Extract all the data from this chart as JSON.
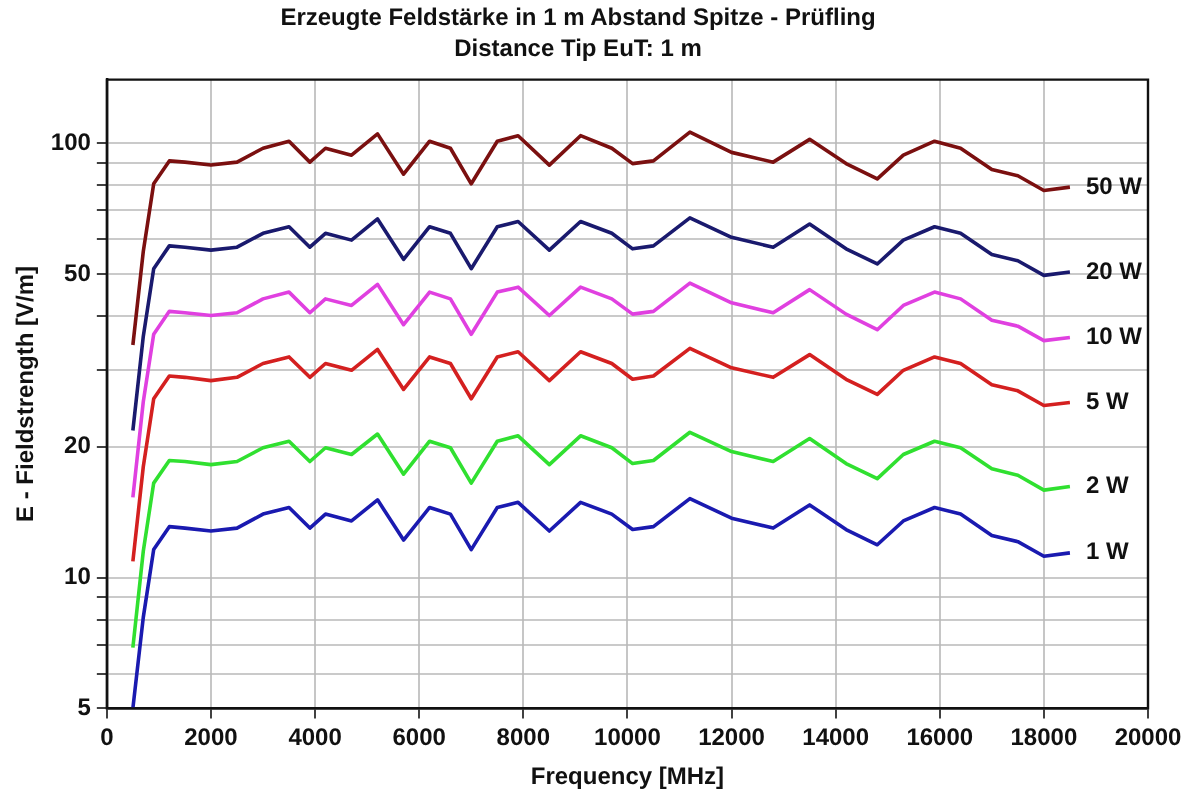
{
  "chart_data": {
    "type": "line",
    "title": "Erzeugte Feldstärke in 1 m Abstand Spitze - Prüfling",
    "subtitle": "Distance Tip EuT: 1 m",
    "xlabel": "Frequency [MHz]",
    "ylabel": "E - Fieldstrength [V/m]",
    "x": [
      500,
      700,
      900,
      1200,
      1500,
      2000,
      2500,
      3000,
      3500,
      3900,
      4200,
      4700,
      5200,
      5700,
      6200,
      6600,
      7000,
      7500,
      7900,
      8500,
      9100,
      9700,
      10100,
      10500,
      11200,
      12000,
      12800,
      13500,
      14200,
      14800,
      15300,
      15900,
      16400,
      17000,
      17500,
      18000,
      18500
    ],
    "xlim": [
      0,
      20000
    ],
    "xticks": [
      0,
      2000,
      4000,
      6000,
      8000,
      10000,
      12000,
      14000,
      16000,
      18000,
      20000
    ],
    "ylim": [
      5,
      140
    ],
    "yticks": [
      5,
      {
        "value": 6,
        "label": null
      },
      {
        "value": 7,
        "label": null
      },
      {
        "value": 8,
        "label": null
      },
      {
        "value": 9,
        "label": null
      },
      10,
      20,
      {
        "value": 30,
        "label": null
      },
      {
        "value": 40,
        "label": null
      },
      50,
      {
        "value": 60,
        "label": null
      },
      {
        "value": 70,
        "label": null
      },
      {
        "value": 80,
        "label": null
      },
      {
        "value": 90,
        "label": null
      },
      100
    ],
    "log": "y",
    "grid": true,
    "legend": false,
    "marker": "none",
    "line_style": "solid",
    "series": [
      {
        "name": "50 W",
        "color": "#7b1010",
        "values": [
          34.3,
          56.3,
          80.6,
          91,
          90.4,
          89,
          90.4,
          97.3,
          101,
          90.4,
          97.3,
          93.8,
          105,
          84.8,
          101,
          97.3,
          80.6,
          101,
          104,
          89,
          104,
          97.3,
          89.7,
          91,
          106,
          95.2,
          90.4,
          102,
          89.7,
          82.7,
          93.8,
          101,
          97.3,
          86.9,
          84.1,
          77.8,
          79.2
        ]
      },
      {
        "name": "20 W",
        "color": "#1a1a6e",
        "values": [
          21.8,
          35.9,
          51.4,
          58,
          57.6,
          56.7,
          57.6,
          62,
          64.2,
          57.6,
          62,
          59.8,
          66.9,
          54,
          64.2,
          62,
          51.4,
          64.2,
          66,
          56.7,
          66,
          62,
          57.1,
          58,
          67.3,
          60.7,
          57.6,
          65.1,
          57.1,
          52.7,
          59.8,
          64.2,
          62,
          55.4,
          53.6,
          49.6,
          50.5
        ]
      },
      {
        "name": "10 W",
        "color": "#e040e0",
        "values": [
          15.3,
          25.4,
          36.3,
          41,
          40.7,
          40.1,
          40.7,
          43.8,
          45.4,
          40.7,
          43.8,
          42.3,
          47.3,
          38.2,
          45.4,
          43.8,
          36.3,
          45.4,
          46.6,
          40.1,
          46.6,
          43.8,
          40.4,
          41,
          47.6,
          42.9,
          40.7,
          46,
          40.4,
          37.2,
          42.3,
          45.4,
          43.8,
          39.1,
          37.9,
          35.1,
          35.7
        ]
      },
      {
        "name": "5 W",
        "color": "#d42020",
        "values": [
          10.9,
          18,
          25.8,
          29.1,
          28.9,
          28.4,
          28.9,
          31.1,
          32.2,
          28.9,
          31.1,
          30,
          33.5,
          27.1,
          32.2,
          31.1,
          25.8,
          32.2,
          33.1,
          28.4,
          33.1,
          31.1,
          28.6,
          29.1,
          33.7,
          30.4,
          28.9,
          32.6,
          28.6,
          26.4,
          30,
          32.2,
          31.1,
          27.8,
          26.9,
          24.9,
          25.3
        ]
      },
      {
        "name": "2 W",
        "color": "#30e030",
        "values": [
          6.9,
          11.5,
          16.5,
          18.6,
          18.5,
          18.2,
          18.5,
          19.9,
          20.6,
          18.5,
          19.9,
          19.2,
          21.4,
          17.3,
          20.6,
          19.9,
          16.5,
          20.6,
          21.2,
          18.2,
          21.2,
          19.9,
          18.3,
          18.6,
          21.6,
          19.5,
          18.5,
          20.9,
          18.3,
          16.9,
          19.2,
          20.6,
          19.9,
          17.8,
          17.2,
          15.9,
          16.2
        ]
      },
      {
        "name": "1 W",
        "color": "#1a1ab0",
        "values": [
          5,
          8.1,
          11.6,
          13.1,
          13,
          12.8,
          13,
          14,
          14.5,
          13,
          14,
          13.5,
          15.1,
          12.2,
          14.5,
          14,
          11.6,
          14.5,
          14.9,
          12.8,
          14.9,
          14,
          12.9,
          13.1,
          15.2,
          13.7,
          13,
          14.7,
          12.9,
          11.9,
          13.5,
          14.5,
          14,
          12.5,
          12.1,
          11.2,
          11.4
        ]
      }
    ]
  }
}
